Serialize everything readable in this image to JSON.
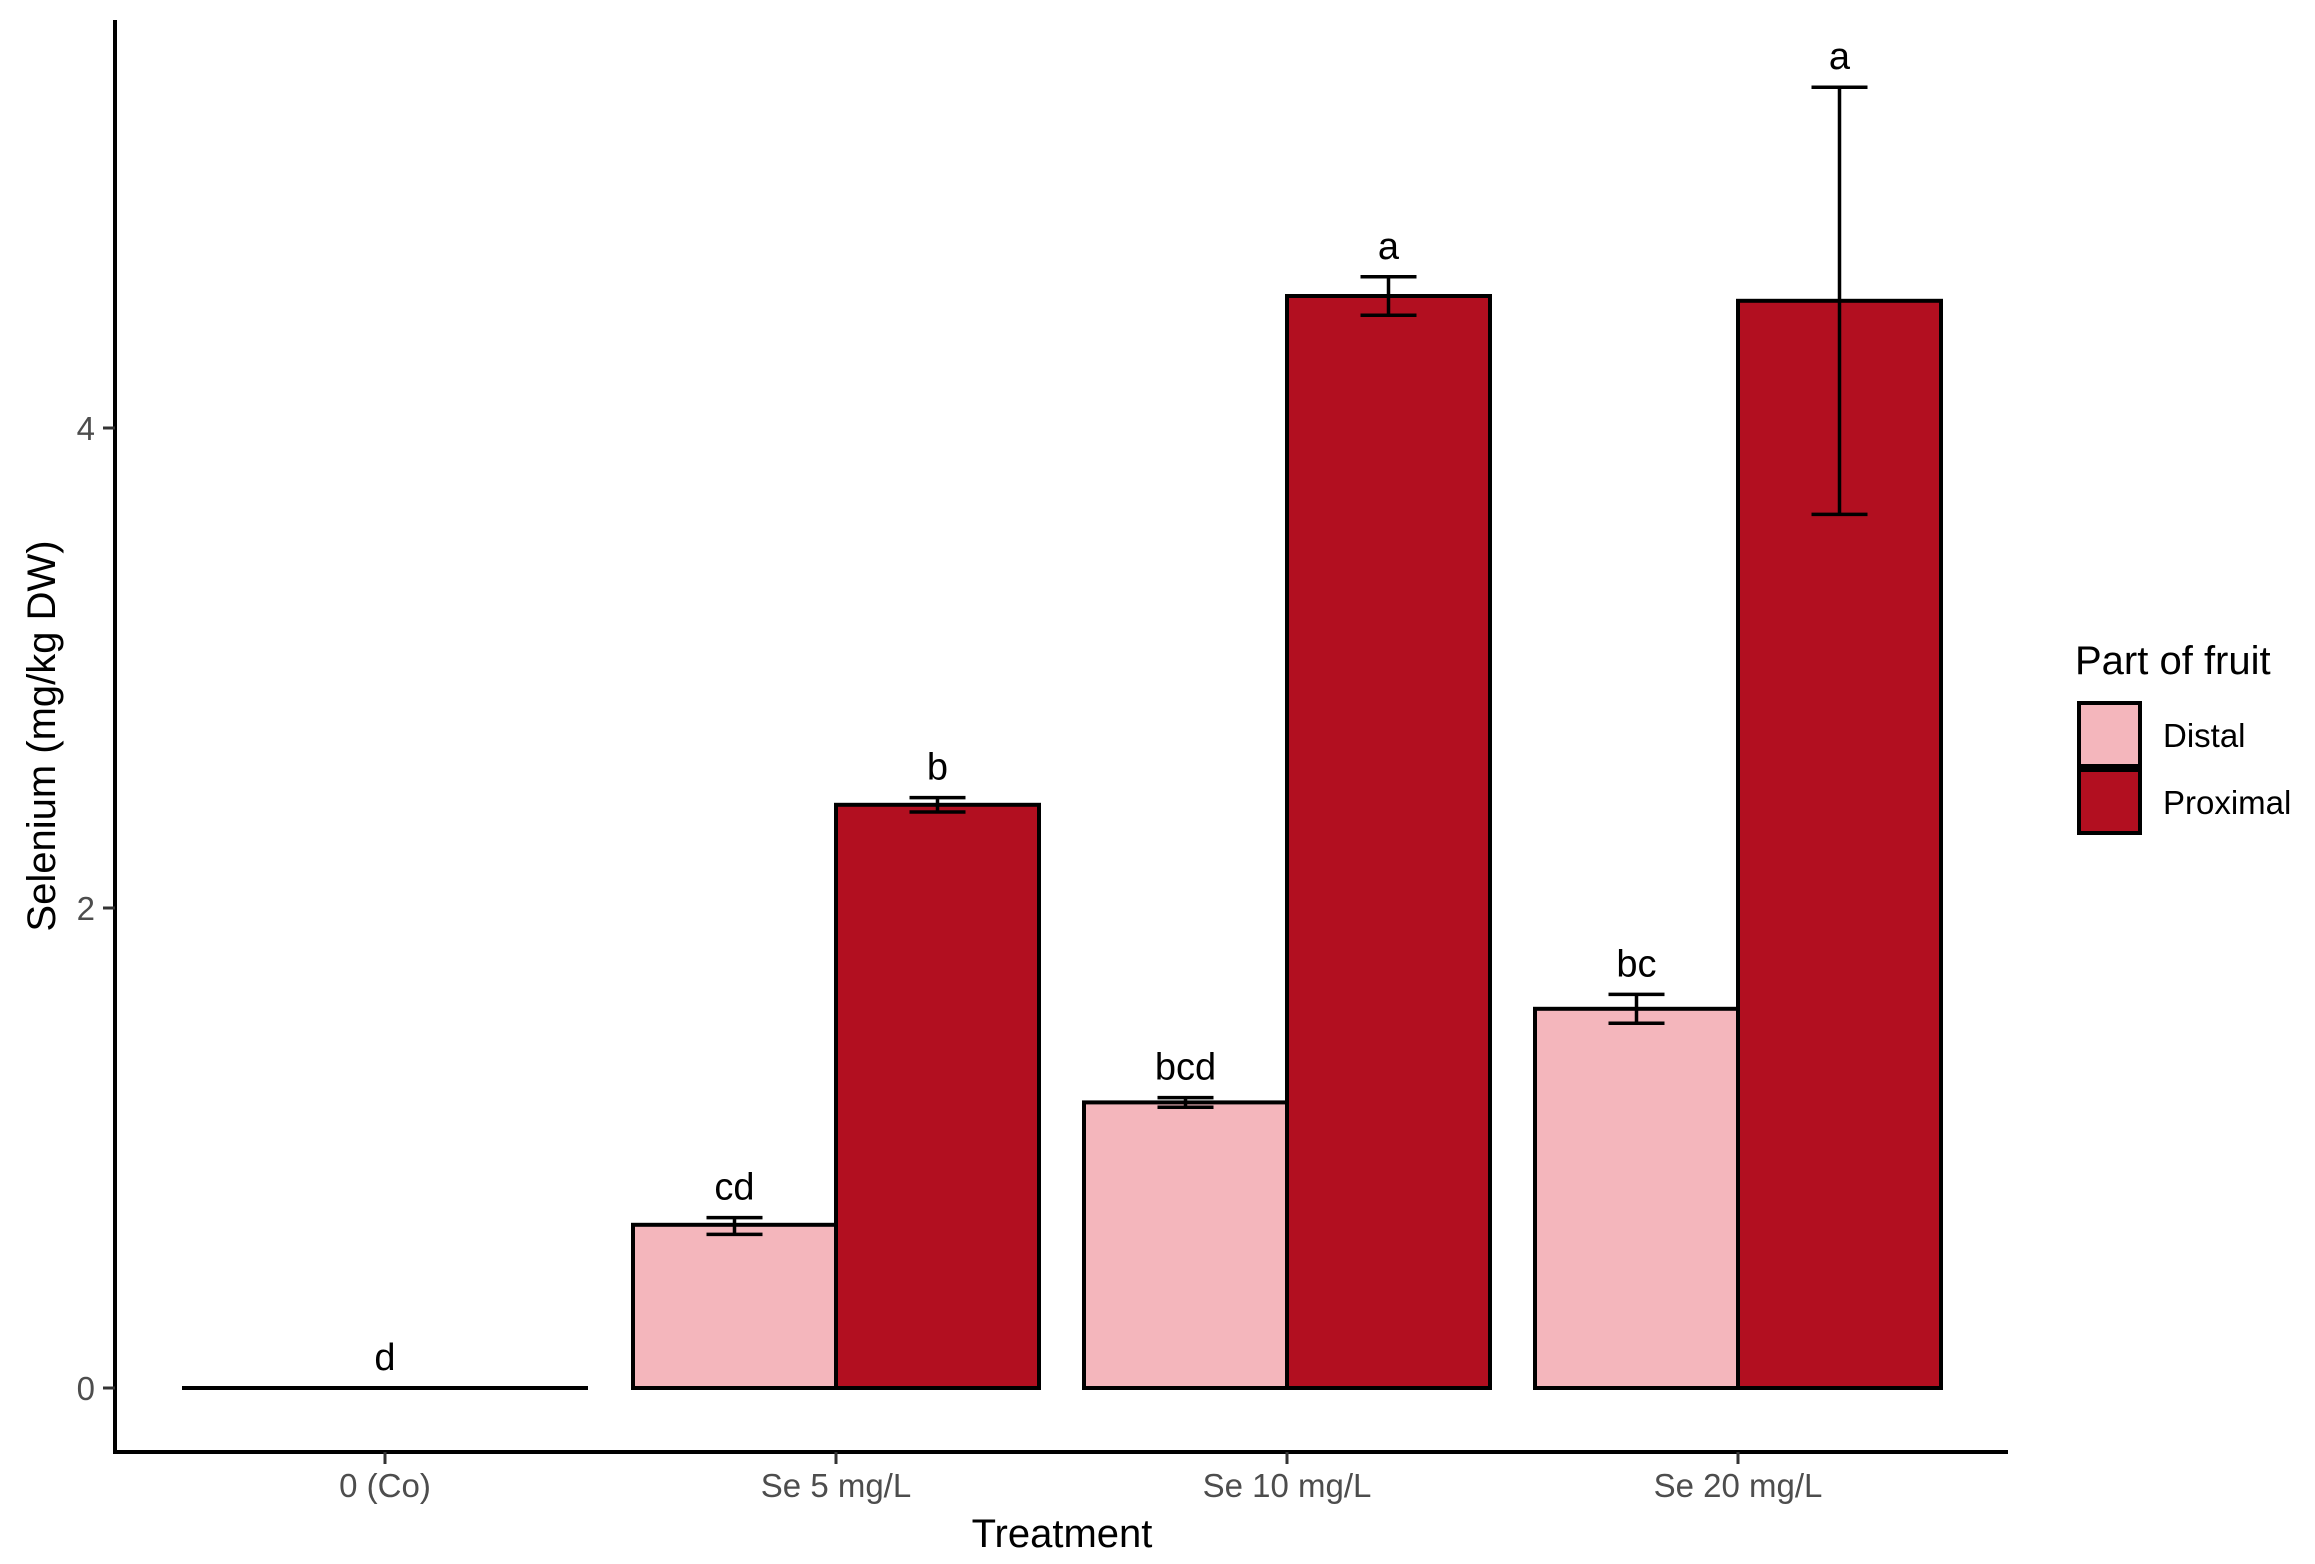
{
  "chart_data": {
    "type": "bar",
    "xlabel": "Treatment",
    "ylabel": "Selenium (mg/kg DW)",
    "categories": [
      "0 (Co)",
      "Se 5 mg/L",
      "Se 10 mg/L",
      "Se 20 mg/L"
    ],
    "ylim": [
      -0.26,
      5.7
    ],
    "yticks": [
      0,
      2,
      4
    ],
    "grid": false,
    "legend": {
      "title": "Part of fruit",
      "position": "right"
    },
    "series": [
      {
        "name": "Distal",
        "color": "#f4b6bc",
        "values": [
          0,
          0.68,
          1.19,
          1.58
        ],
        "error_low": [
          0,
          0.64,
          1.17,
          1.52
        ],
        "error_high": [
          0,
          0.71,
          1.21,
          1.64
        ],
        "letters": [
          "d",
          "cd",
          "bcd",
          "bc"
        ]
      },
      {
        "name": "Proximal",
        "color": "#b20f20",
        "values": [
          0,
          2.43,
          4.55,
          4.53
        ],
        "error_low": [
          0,
          2.4,
          4.47,
          3.64
        ],
        "error_high": [
          0,
          2.46,
          4.63,
          5.42
        ],
        "letters": [
          "",
          "b",
          "a",
          "a"
        ]
      }
    ]
  }
}
